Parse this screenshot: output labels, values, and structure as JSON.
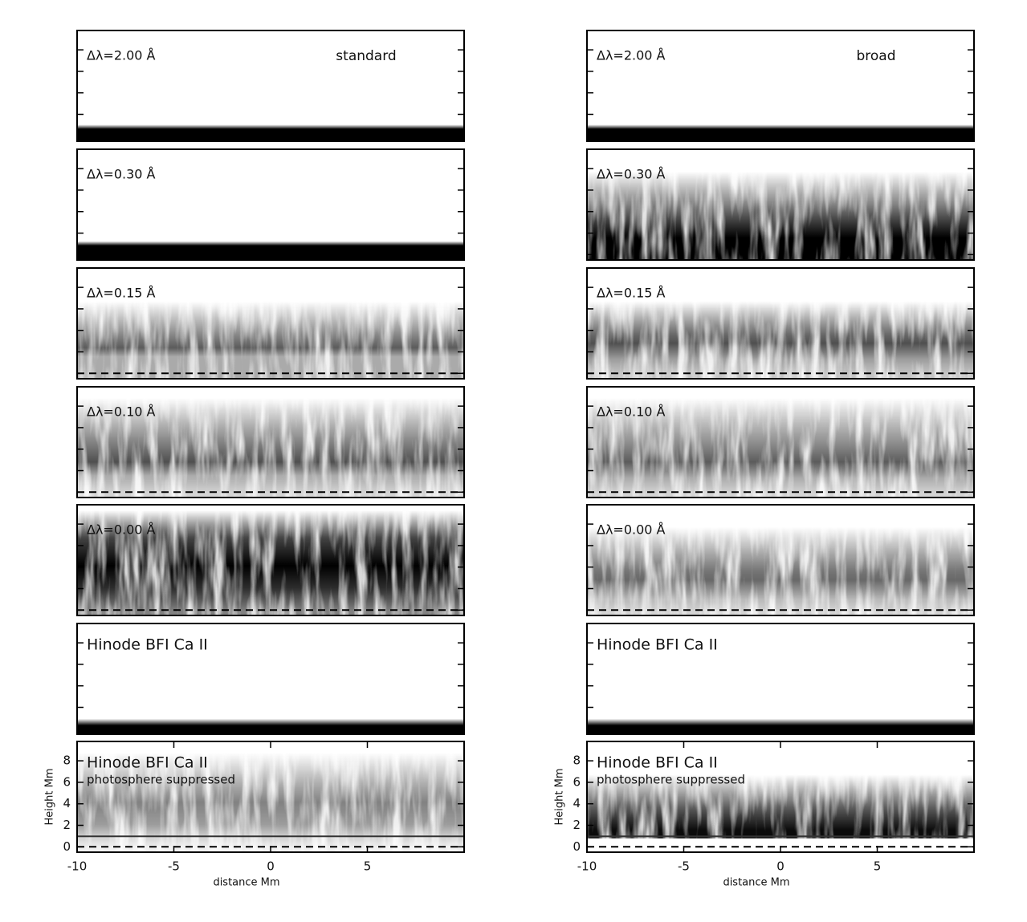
{
  "columns": [
    {
      "label": "standard",
      "panels": [
        {
          "label": "Δλ=2.00 Å"
        },
        {
          "label": "Δλ=0.30 Å"
        },
        {
          "label": "Δλ=0.15 Å"
        },
        {
          "label": "Δλ=0.10 Å"
        },
        {
          "label": "Δλ=0.00 Å"
        },
        {
          "label": "Hinode BFI Ca II"
        },
        {
          "label": "Hinode BFI Ca II",
          "sublabel": "photosphere suppressed"
        }
      ]
    },
    {
      "label": "broad",
      "panels": [
        {
          "label": "Δλ=2.00 Å"
        },
        {
          "label": "Δλ=0.30 Å"
        },
        {
          "label": "Δλ=0.15 Å"
        },
        {
          "label": "Δλ=0.10 Å"
        },
        {
          "label": "Δλ=0.00 Å"
        },
        {
          "label": "Hinode BFI Ca II"
        },
        {
          "label": "Hinode BFI Ca II",
          "sublabel": "photosphere suppressed"
        }
      ]
    }
  ],
  "axes": {
    "xlabel": "distance Mm",
    "ylabel": "Height Mm",
    "xlim": [
      -10,
      10
    ],
    "xticks": [
      -10,
      -5,
      0,
      5
    ],
    "ylim": [
      -0.5,
      9.8
    ],
    "yticks": [
      0,
      2,
      4,
      6,
      8
    ]
  }
}
